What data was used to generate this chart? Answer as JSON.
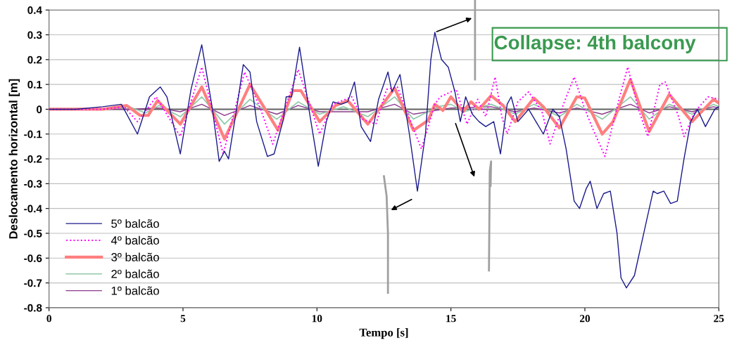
{
  "chart_data": {
    "type": "line",
    "xlabel": "Tempo [s]",
    "ylabel": "Deslocamento horizontal [m]",
    "xlim": [
      0,
      25
    ],
    "xticks": [
      0,
      5,
      10,
      15,
      20,
      25
    ],
    "ylim": [
      -0.8,
      0.4
    ],
    "yticks": [
      -0.8,
      -0.7,
      -0.6,
      -0.5,
      -0.4,
      -0.3,
      -0.2,
      -0.1,
      0,
      0.1,
      0.2,
      0.3,
      0.4
    ],
    "grid": "y",
    "legend": "bottom left",
    "marker": "none",
    "ref_lines": [
      {
        "axis": "y",
        "value": 0,
        "color": "#606060"
      }
    ],
    "annotations": [
      "Collapse: 4th balcony"
    ],
    "series": [
      {
        "name": "5º balcão",
        "color": "#1a1a8c",
        "line_style": "solid",
        "x": [
          0,
          1,
          2,
          2.7,
          3.3,
          3.75,
          4.15,
          4.4,
          4.9,
          5.3,
          5.7,
          6.1,
          6.35,
          6.55,
          6.7,
          7.0,
          7.25,
          7.5,
          7.75,
          8.15,
          8.4,
          8.75,
          8.85,
          9.05,
          9.35,
          9.7,
          10.05,
          10.35,
          10.6,
          10.9,
          11.15,
          11.4,
          11.65,
          12.0,
          12.3,
          12.65,
          12.8,
          13.1,
          13.45,
          13.75,
          14.05,
          14.25,
          14.4,
          14.65,
          14.9,
          15.15,
          15.35,
          15.55,
          15.8,
          16.05,
          16.3,
          16.6,
          16.85,
          17.1,
          17.25,
          17.5,
          17.9,
          18.45,
          18.8,
          19.05,
          19.3,
          19.6,
          19.8,
          20.05,
          20.2,
          20.45,
          20.7,
          20.95,
          21.2,
          21.35,
          21.55,
          21.85,
          22.3,
          22.55,
          22.7,
          22.95,
          23.2,
          23.45,
          23.7,
          23.95,
          24.2,
          24.5,
          24.85,
          25
        ],
        "values": [
          0,
          0,
          0.01,
          0.02,
          -0.1,
          0.05,
          0.09,
          0.05,
          -0.18,
          0.08,
          0.26,
          0,
          -0.21,
          -0.17,
          -0.2,
          0,
          0.18,
          0.15,
          -0.05,
          -0.19,
          -0.18,
          -0.04,
          0.05,
          0.05,
          0.25,
          0,
          -0.23,
          -0.05,
          0.03,
          0.02,
          0.03,
          0.11,
          -0.07,
          -0.13,
          0.04,
          0.15,
          0.07,
          0.14,
          -0.1,
          -0.33,
          -0.1,
          0.2,
          0.31,
          0.2,
          0.17,
          0.07,
          -0.05,
          0.05,
          -0.02,
          -0.05,
          -0.07,
          -0.05,
          -0.18,
          0.02,
          0.05,
          -0.05,
          0,
          -0.1,
          0,
          -0.03,
          -0.16,
          -0.37,
          -0.4,
          -0.32,
          -0.29,
          -0.4,
          -0.34,
          -0.33,
          -0.5,
          -0.68,
          -0.72,
          -0.67,
          -0.45,
          -0.33,
          -0.34,
          -0.33,
          -0.38,
          -0.37,
          -0.2,
          -0.05,
          0,
          -0.07,
          0,
          0.01
        ]
      },
      {
        "name": "4º balcão",
        "color": "#ff00ff",
        "line_style": "dotted",
        "x": [
          0,
          1,
          2,
          2.8,
          3.3,
          4.0,
          4.9,
          5.7,
          6.5,
          7.3,
          7.9,
          8.35,
          9.3,
          10.1,
          10.6,
          11.3,
          11.7,
          12.2,
          12.6,
          13.0,
          13.5,
          13.9,
          14.4,
          14.6,
          15.2,
          15.6,
          16.0,
          16.3,
          16.65,
          16.9,
          17.1,
          17.5,
          17.9,
          18.4,
          18.7,
          19.2,
          19.6,
          20.0,
          20.3,
          20.75,
          21.3,
          21.6,
          22.0,
          22.35,
          22.8,
          23.0,
          23.5,
          23.7,
          24.1,
          24.6,
          25
        ],
        "values": [
          0,
          0,
          0,
          0.01,
          -0.05,
          0.05,
          -0.11,
          0.17,
          -0.18,
          0.15,
          0,
          -0.14,
          0.16,
          -0.1,
          0.02,
          0.05,
          -0.04,
          -0.06,
          0.08,
          0.09,
          -0.05,
          -0.16,
          0.02,
          0.05,
          0.08,
          -0.06,
          0.04,
          -0.03,
          0.13,
          -0.03,
          -0.1,
          0.03,
          0.07,
          -0.01,
          -0.14,
          0.02,
          0.13,
          0,
          -0.08,
          -0.19,
          0.05,
          0.17,
          0,
          -0.11,
          0.1,
          0.11,
          -0.03,
          -0.11,
          -0.01,
          0.05,
          0.04
        ]
      },
      {
        "name": "3º balcão",
        "color": "#ff7f7f",
        "line_style": "solid",
        "x": [
          0,
          1,
          2,
          2.9,
          3.4,
          3.7,
          4.05,
          4.9,
          5.7,
          6.55,
          7.5,
          8.55,
          9.1,
          9.4,
          10.1,
          10.7,
          11.15,
          11.9,
          12.9,
          13.6,
          14.15,
          14.4,
          14.7,
          15.0,
          15.45,
          15.75,
          16.05,
          16.5,
          16.95,
          17.4,
          18.1,
          18.45,
          19.05,
          19.7,
          20.0,
          20.65,
          21.05,
          21.7,
          22.4,
          23.15,
          24.0,
          24.8,
          25
        ],
        "values": [
          0,
          0,
          0,
          0.015,
          -0.025,
          -0.025,
          0.035,
          -0.06,
          0.09,
          -0.12,
          0.1,
          -0.085,
          0.075,
          0.075,
          -0.05,
          0.015,
          0.035,
          -0.06,
          0.085,
          -0.085,
          -0.045,
          0.02,
          -0.005,
          0.05,
          -0.01,
          0.03,
          0,
          0.055,
          0.015,
          -0.05,
          0.045,
          0.01,
          -0.075,
          0.05,
          0.045,
          -0.1,
          -0.05,
          0.12,
          -0.09,
          0.06,
          -0.05,
          0.04,
          0.025
        ]
      },
      {
        "name": "2º balcão",
        "color": "#8fc8a8",
        "line_style": "solid",
        "x": [
          0,
          2,
          3.0,
          3.6,
          4.1,
          4.9,
          5.7,
          6.55,
          7.5,
          8.5,
          9.3,
          10.1,
          11.0,
          11.9,
          12.9,
          13.6,
          14.5,
          15.0,
          15.5,
          16.5,
          17.4,
          18.1,
          19.05,
          19.7,
          20.65,
          21.7,
          22.4,
          23.15,
          24.0,
          24.8,
          25
        ],
        "values": [
          0,
          0,
          0.01,
          -0.015,
          0.015,
          -0.03,
          0.05,
          -0.06,
          0.04,
          -0.04,
          0.03,
          -0.02,
          0.01,
          -0.03,
          0.05,
          -0.04,
          0.01,
          0.02,
          -0.01,
          0.02,
          -0.02,
          0.02,
          -0.03,
          0.02,
          -0.04,
          0.05,
          -0.04,
          0.02,
          -0.02,
          0.02,
          0.01
        ]
      },
      {
        "name": "1º balcão",
        "color": "#8b3a8b",
        "line_style": "solid",
        "x": [
          0,
          3,
          4.1,
          4.9,
          5.7,
          6.55,
          7.5,
          8.5,
          9.3,
          10.1,
          11.9,
          12.9,
          13.6,
          15.0,
          16.5,
          17.4,
          18.1,
          19.05,
          19.7,
          20.65,
          21.7,
          22.4,
          23.15,
          24.0,
          24.8,
          25
        ],
        "values": [
          0,
          0,
          0.005,
          -0.01,
          0.02,
          -0.025,
          0.015,
          -0.02,
          0.015,
          -0.01,
          -0.01,
          0.02,
          -0.02,
          0.005,
          0.01,
          -0.01,
          0.005,
          -0.015,
          0.005,
          -0.02,
          0.02,
          -0.015,
          0.01,
          -0.01,
          0.01,
          0.005
        ]
      }
    ]
  }
}
